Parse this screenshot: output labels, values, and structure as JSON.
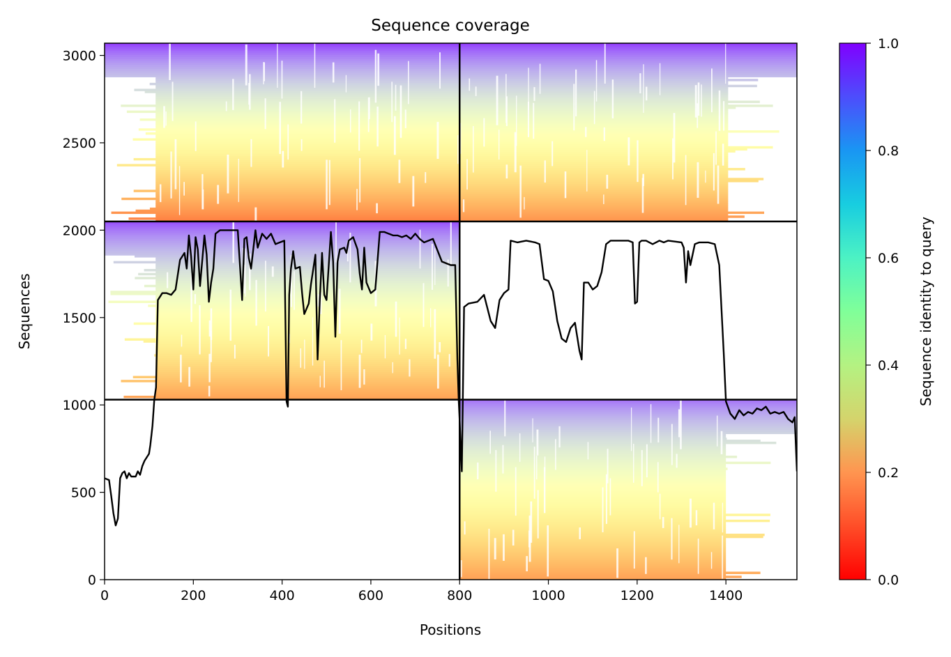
{
  "chart_data": {
    "type": "heatmap",
    "title": "Sequence coverage",
    "xlabel": "Positions",
    "ylabel": "Sequences",
    "xlim": [
      0,
      1560
    ],
    "ylim": [
      0,
      3070
    ],
    "x_ticks": [
      0,
      200,
      400,
      600,
      800,
      1000,
      1200,
      1400
    ],
    "y_ticks": [
      0,
      500,
      1000,
      1500,
      2000,
      2500,
      3000
    ],
    "colormap": "rainbow_r",
    "colorbar": {
      "label": "Sequence identity to query",
      "range": [
        0.0,
        1.0
      ],
      "ticks": [
        0.0,
        0.2,
        0.4,
        0.6,
        0.8,
        1.0
      ],
      "tick_labels": [
        "0.0",
        "0.2",
        "0.4",
        "0.6",
        "0.8",
        "1.0"
      ]
    },
    "blocks": [
      {
        "x_range": [
          0,
          800
        ],
        "y_range": [
          2050,
          3070
        ],
        "coverage_start": 115,
        "coverage_end": 800,
        "identity_top": 0.92,
        "identity_bottom": 0.17
      },
      {
        "x_range": [
          800,
          1560
        ],
        "y_range": [
          2050,
          3070
        ],
        "coverage_start": 800,
        "coverage_end": 1405,
        "identity_top": 0.92,
        "identity_bottom": 0.2
      },
      {
        "x_range": [
          0,
          800
        ],
        "y_range": [
          1030,
          2050
        ],
        "coverage_start": 115,
        "coverage_end": 800,
        "identity_top": 0.9,
        "identity_bottom": 0.22
      },
      {
        "x_range": [
          800,
          1560
        ],
        "y_range": [
          0,
          1030
        ],
        "coverage_start": 800,
        "coverage_end": 1400,
        "identity_top": 0.85,
        "identity_bottom": 0.22
      }
    ],
    "block_dividers": {
      "x": [
        800
      ],
      "y": [
        1030,
        2050
      ]
    },
    "coverage_line": {
      "name": "coverage",
      "color": "#000000",
      "points": [
        [
          0,
          580
        ],
        [
          10,
          570
        ],
        [
          15,
          480
        ],
        [
          20,
          380
        ],
        [
          25,
          310
        ],
        [
          30,
          350
        ],
        [
          35,
          580
        ],
        [
          40,
          610
        ],
        [
          45,
          620
        ],
        [
          50,
          580
        ],
        [
          55,
          610
        ],
        [
          60,
          590
        ],
        [
          70,
          590
        ],
        [
          75,
          620
        ],
        [
          80,
          600
        ],
        [
          85,
          650
        ],
        [
          90,
          680
        ],
        [
          95,
          700
        ],
        [
          100,
          720
        ],
        [
          103,
          770
        ],
        [
          108,
          880
        ],
        [
          112,
          1030
        ],
        [
          116,
          1100
        ],
        [
          120,
          1600
        ],
        [
          130,
          1640
        ],
        [
          140,
          1640
        ],
        [
          150,
          1630
        ],
        [
          160,
          1660
        ],
        [
          170,
          1830
        ],
        [
          180,
          1870
        ],
        [
          185,
          1780
        ],
        [
          190,
          1970
        ],
        [
          195,
          1850
        ],
        [
          200,
          1660
        ],
        [
          205,
          1960
        ],
        [
          210,
          1890
        ],
        [
          215,
          1680
        ],
        [
          225,
          1970
        ],
        [
          230,
          1860
        ],
        [
          235,
          1590
        ],
        [
          240,
          1700
        ],
        [
          245,
          1780
        ],
        [
          250,
          1980
        ],
        [
          260,
          2000
        ],
        [
          300,
          2000
        ],
        [
          310,
          1600
        ],
        [
          315,
          1950
        ],
        [
          320,
          1960
        ],
        [
          325,
          1840
        ],
        [
          330,
          1780
        ],
        [
          340,
          2000
        ],
        [
          345,
          1900
        ],
        [
          355,
          1980
        ],
        [
          365,
          1950
        ],
        [
          375,
          1980
        ],
        [
          385,
          1920
        ],
        [
          395,
          1930
        ],
        [
          405,
          1940
        ],
        [
          410,
          1020
        ],
        [
          413,
          990
        ],
        [
          416,
          1630
        ],
        [
          420,
          1780
        ],
        [
          425,
          1880
        ],
        [
          430,
          1780
        ],
        [
          440,
          1790
        ],
        [
          445,
          1640
        ],
        [
          450,
          1520
        ],
        [
          460,
          1580
        ],
        [
          465,
          1690
        ],
        [
          475,
          1860
        ],
        [
          480,
          1260
        ],
        [
          485,
          1600
        ],
        [
          490,
          1870
        ],
        [
          495,
          1630
        ],
        [
          500,
          1600
        ],
        [
          510,
          1990
        ],
        [
          515,
          1820
        ],
        [
          520,
          1390
        ],
        [
          525,
          1820
        ],
        [
          530,
          1890
        ],
        [
          540,
          1900
        ],
        [
          545,
          1870
        ],
        [
          550,
          1940
        ],
        [
          560,
          1960
        ],
        [
          570,
          1890
        ],
        [
          575,
          1750
        ],
        [
          580,
          1660
        ],
        [
          585,
          1900
        ],
        [
          590,
          1700
        ],
        [
          600,
          1640
        ],
        [
          610,
          1660
        ],
        [
          620,
          1990
        ],
        [
          630,
          1990
        ],
        [
          640,
          1980
        ],
        [
          650,
          1970
        ],
        [
          660,
          1970
        ],
        [
          670,
          1960
        ],
        [
          680,
          1970
        ],
        [
          690,
          1950
        ],
        [
          700,
          1980
        ],
        [
          710,
          1950
        ],
        [
          720,
          1930
        ],
        [
          740,
          1950
        ],
        [
          760,
          1820
        ],
        [
          780,
          1800
        ],
        [
          790,
          1800
        ],
        [
          795,
          1260
        ],
        [
          798,
          1020
        ],
        [
          800,
          920
        ],
        [
          805,
          620
        ],
        [
          810,
          1560
        ],
        [
          820,
          1580
        ],
        [
          840,
          1590
        ],
        [
          855,
          1630
        ],
        [
          860,
          1580
        ],
        [
          870,
          1480
        ],
        [
          880,
          1440
        ],
        [
          890,
          1600
        ],
        [
          900,
          1640
        ],
        [
          910,
          1660
        ],
        [
          915,
          1940
        ],
        [
          930,
          1930
        ],
        [
          950,
          1940
        ],
        [
          970,
          1930
        ],
        [
          980,
          1920
        ],
        [
          990,
          1720
        ],
        [
          1000,
          1710
        ],
        [
          1010,
          1650
        ],
        [
          1020,
          1480
        ],
        [
          1030,
          1380
        ],
        [
          1040,
          1360
        ],
        [
          1050,
          1440
        ],
        [
          1060,
          1470
        ],
        [
          1070,
          1310
        ],
        [
          1075,
          1260
        ],
        [
          1080,
          1700
        ],
        [
          1090,
          1700
        ],
        [
          1100,
          1660
        ],
        [
          1110,
          1680
        ],
        [
          1120,
          1760
        ],
        [
          1130,
          1920
        ],
        [
          1140,
          1940
        ],
        [
          1180,
          1940
        ],
        [
          1190,
          1930
        ],
        [
          1195,
          1580
        ],
        [
          1200,
          1590
        ],
        [
          1205,
          1930
        ],
        [
          1210,
          1940
        ],
        [
          1220,
          1940
        ],
        [
          1235,
          1920
        ],
        [
          1250,
          1940
        ],
        [
          1260,
          1930
        ],
        [
          1270,
          1940
        ],
        [
          1300,
          1930
        ],
        [
          1305,
          1900
        ],
        [
          1310,
          1700
        ],
        [
          1315,
          1880
        ],
        [
          1320,
          1800
        ],
        [
          1330,
          1920
        ],
        [
          1340,
          1930
        ],
        [
          1360,
          1930
        ],
        [
          1375,
          1920
        ],
        [
          1385,
          1800
        ],
        [
          1395,
          1300
        ],
        [
          1400,
          1020
        ],
        [
          1410,
          950
        ],
        [
          1420,
          920
        ],
        [
          1430,
          970
        ],
        [
          1440,
          940
        ],
        [
          1450,
          960
        ],
        [
          1460,
          950
        ],
        [
          1470,
          980
        ],
        [
          1480,
          970
        ],
        [
          1490,
          990
        ],
        [
          1500,
          950
        ],
        [
          1510,
          960
        ],
        [
          1520,
          950
        ],
        [
          1530,
          960
        ],
        [
          1540,
          920
        ],
        [
          1550,
          900
        ],
        [
          1555,
          930
        ],
        [
          1560,
          620
        ]
      ]
    }
  }
}
